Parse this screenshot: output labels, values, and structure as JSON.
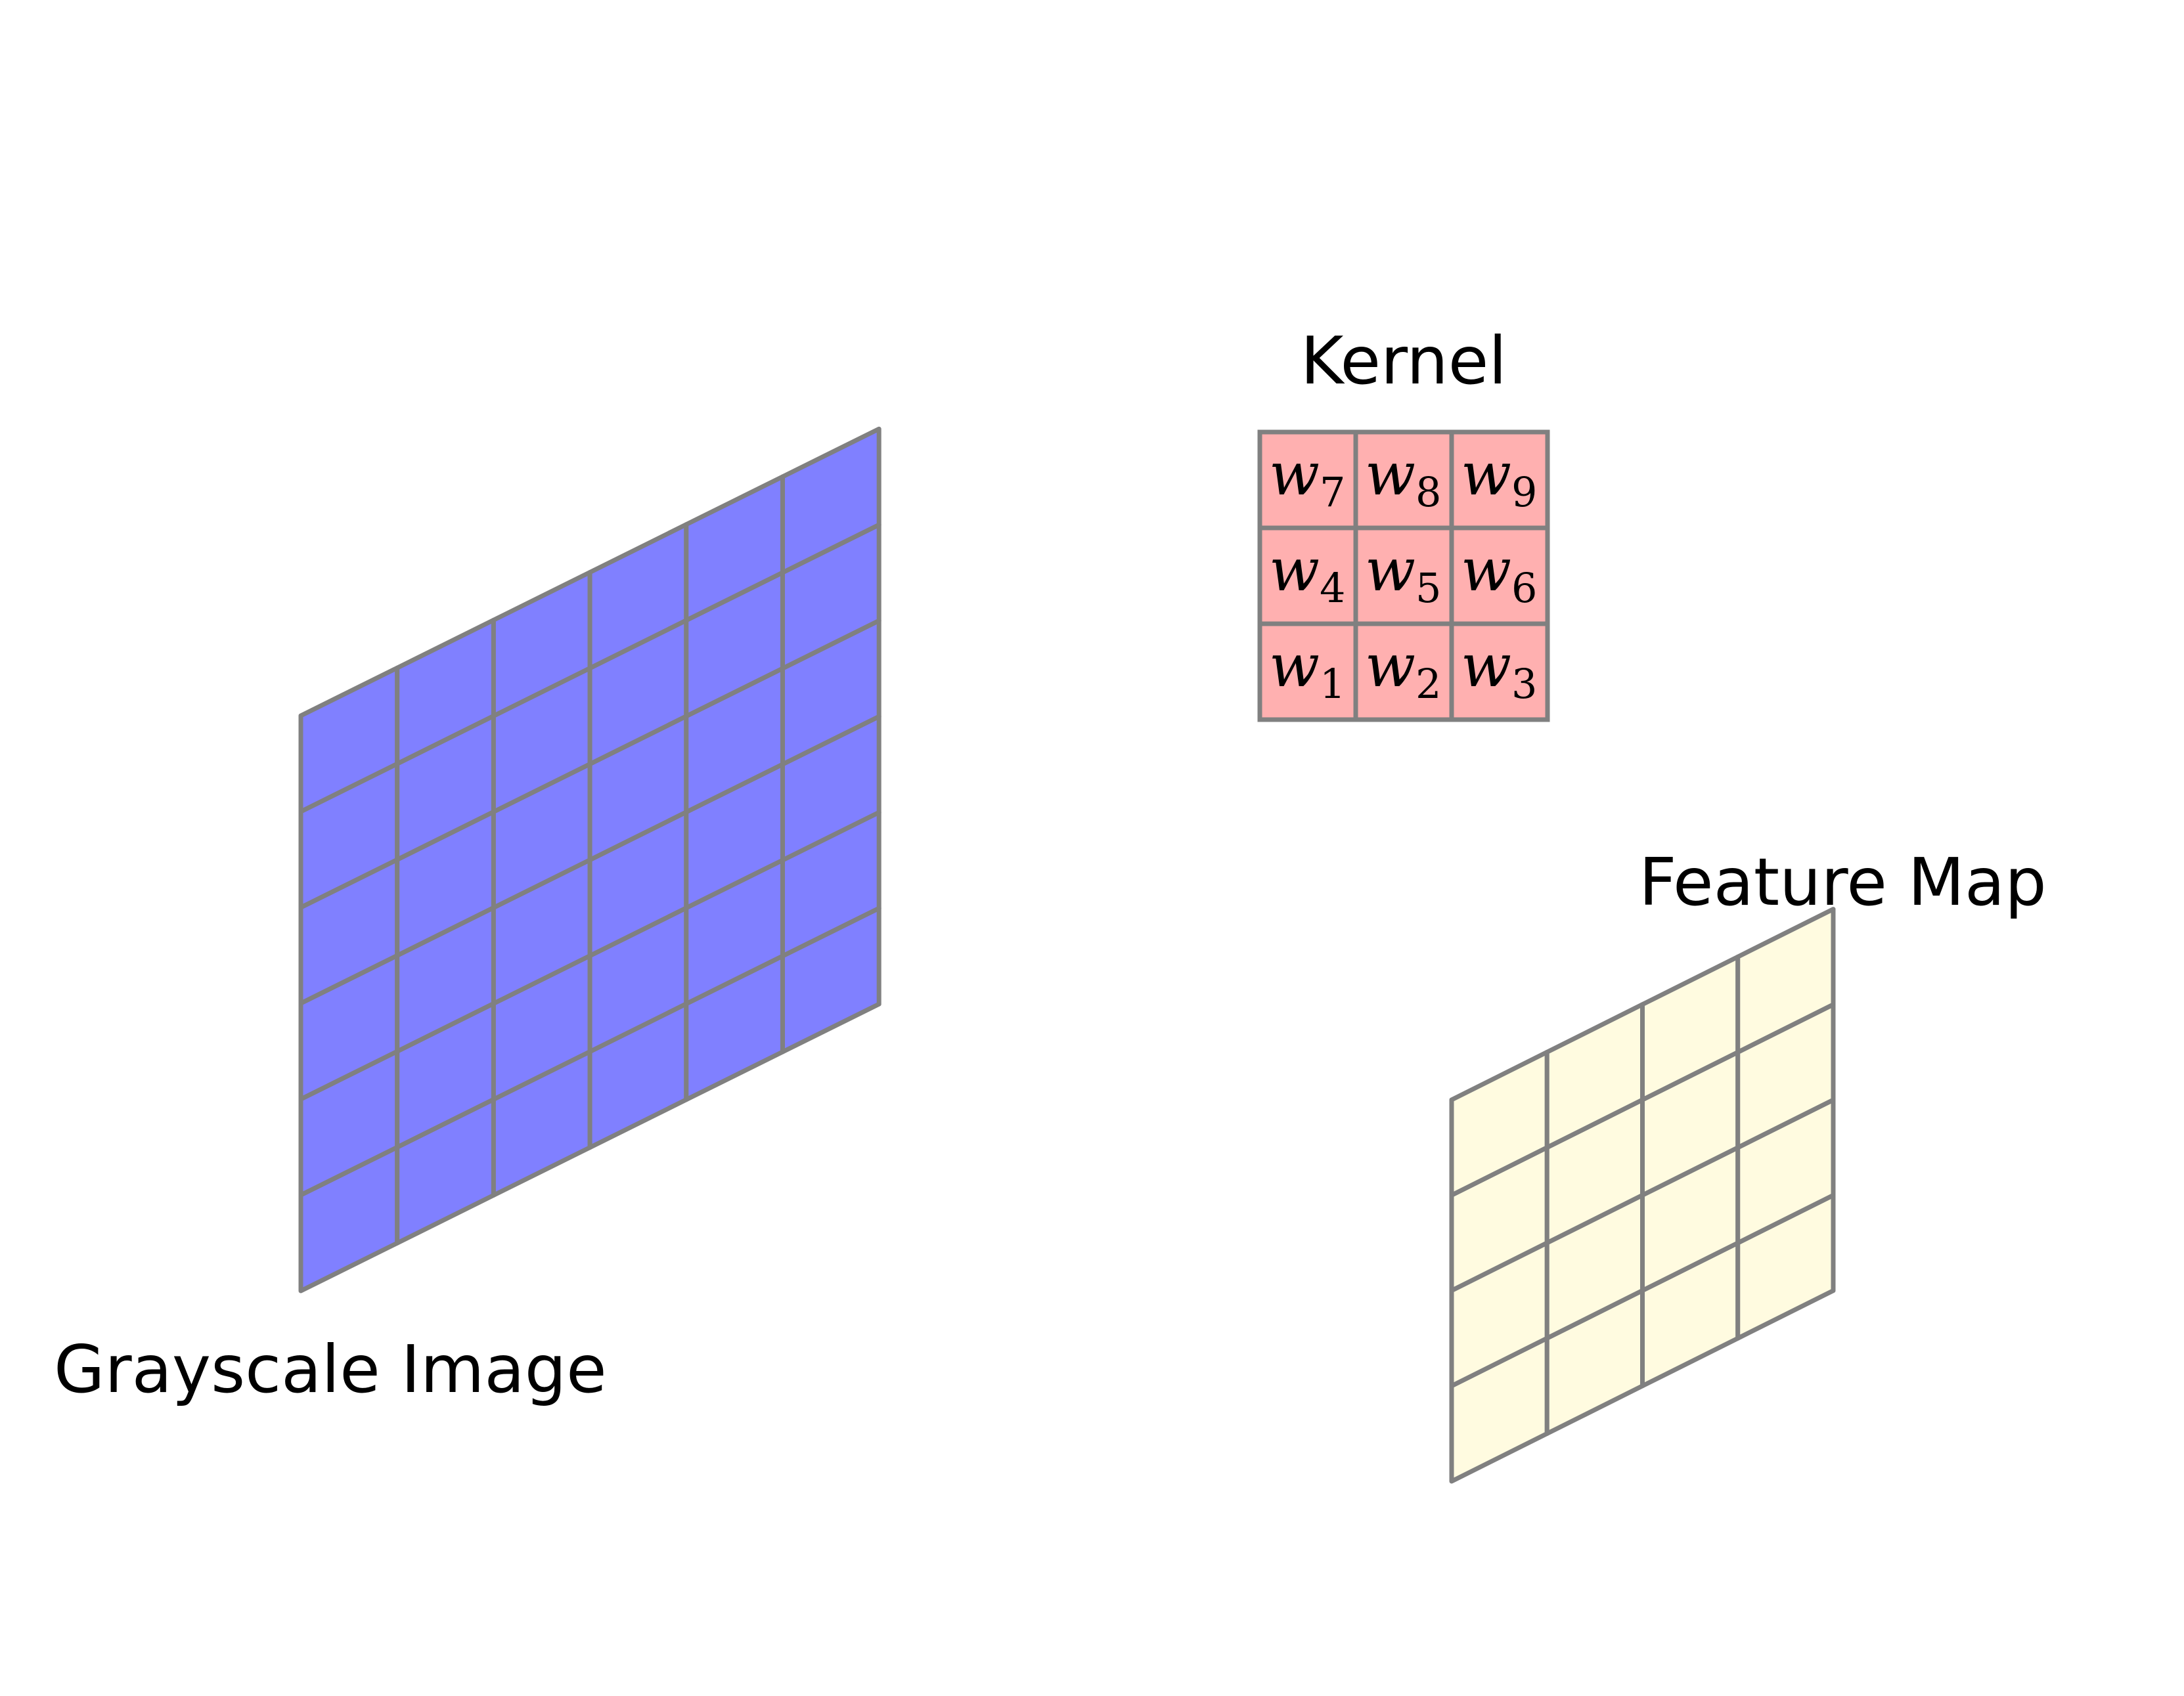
{
  "labels": {
    "grayscale_image": "Grayscale Image",
    "kernel": "Kernel",
    "feature_map": "Feature Map"
  },
  "grayscale_image": {
    "rows": 6,
    "cols": 6,
    "fill": "#8080ff"
  },
  "feature_map": {
    "rows": 4,
    "cols": 4,
    "fill": "#fffbe0"
  },
  "kernel": {
    "fill": "#ffb0b0",
    "weights": [
      [
        {
          "base": "w",
          "sub": "7"
        },
        {
          "base": "w",
          "sub": "8"
        },
        {
          "base": "w",
          "sub": "9"
        }
      ],
      [
        {
          "base": "w",
          "sub": "4"
        },
        {
          "base": "w",
          "sub": "5"
        },
        {
          "base": "w",
          "sub": "6"
        }
      ],
      [
        {
          "base": "w",
          "sub": "1"
        },
        {
          "base": "w",
          "sub": "2"
        },
        {
          "base": "w",
          "sub": "3"
        }
      ]
    ]
  },
  "grid_line_color": "#808080"
}
